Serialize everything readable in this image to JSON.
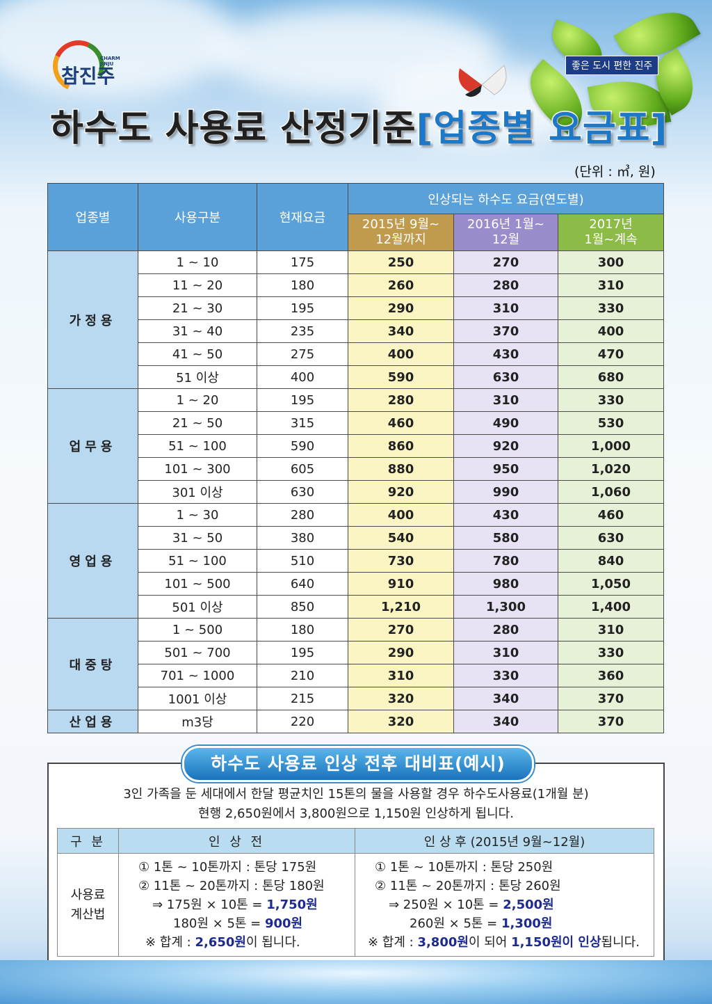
{
  "logo": {
    "main": "참진주",
    "sub_line1": "CHARM",
    "sub_line2": "JINJU"
  },
  "slogan": "좋은 도시  편한 진주",
  "title": {
    "main": "하수도 사용료 산정기준",
    "accent": "[업종별 요금표]"
  },
  "unit": "(단위 : ㎥, 원)",
  "rate_table": {
    "headers": {
      "category": "업종별",
      "usage": "사용구분",
      "current": "현재요금",
      "increase_group": "인상되는 하수도 요금(연도별)",
      "y2015_l1": "2015년 9월~",
      "y2015_l2": "12월까지",
      "y2016_l1": "2016년 1월~",
      "y2016_l2": "12월",
      "y2017_l1": "2017년",
      "y2017_l2": "1월~계속"
    },
    "groups": [
      {
        "name": "가정용",
        "rows": [
          {
            "usage": "1 ~ 10",
            "current": "175",
            "y2015": "250",
            "y2016": "270",
            "y2017": "300"
          },
          {
            "usage": "11 ~ 20",
            "current": "180",
            "y2015": "260",
            "y2016": "280",
            "y2017": "310"
          },
          {
            "usage": "21 ~ 30",
            "current": "195",
            "y2015": "290",
            "y2016": "310",
            "y2017": "330"
          },
          {
            "usage": "31 ~ 40",
            "current": "235",
            "y2015": "340",
            "y2016": "370",
            "y2017": "400"
          },
          {
            "usage": "41 ~ 50",
            "current": "275",
            "y2015": "400",
            "y2016": "430",
            "y2017": "470"
          },
          {
            "usage": "51 이상",
            "current": "400",
            "y2015": "590",
            "y2016": "630",
            "y2017": "680"
          }
        ]
      },
      {
        "name": "업무용",
        "rows": [
          {
            "usage": "1 ~ 20",
            "current": "195",
            "y2015": "280",
            "y2016": "310",
            "y2017": "330"
          },
          {
            "usage": "21 ~ 50",
            "current": "315",
            "y2015": "460",
            "y2016": "490",
            "y2017": "530"
          },
          {
            "usage": "51 ~ 100",
            "current": "590",
            "y2015": "860",
            "y2016": "920",
            "y2017": "1,000"
          },
          {
            "usage": "101 ~ 300",
            "current": "605",
            "y2015": "880",
            "y2016": "950",
            "y2017": "1,020"
          },
          {
            "usage": "301 이상",
            "current": "630",
            "y2015": "920",
            "y2016": "990",
            "y2017": "1,060"
          }
        ]
      },
      {
        "name": "영업용",
        "rows": [
          {
            "usage": "1 ~ 30",
            "current": "280",
            "y2015": "400",
            "y2016": "430",
            "y2017": "460"
          },
          {
            "usage": "31 ~ 50",
            "current": "380",
            "y2015": "540",
            "y2016": "580",
            "y2017": "630"
          },
          {
            "usage": "51 ~ 100",
            "current": "510",
            "y2015": "730",
            "y2016": "780",
            "y2017": "840"
          },
          {
            "usage": "101 ~ 500",
            "current": "640",
            "y2015": "910",
            "y2016": "980",
            "y2017": "1,050"
          },
          {
            "usage": "501 이상",
            "current": "850",
            "y2015": "1,210",
            "y2016": "1,300",
            "y2017": "1,400"
          }
        ]
      },
      {
        "name": "대중탕",
        "rows": [
          {
            "usage": "1 ~ 500",
            "current": "180",
            "y2015": "270",
            "y2016": "280",
            "y2017": "310"
          },
          {
            "usage": "501 ~ 700",
            "current": "195",
            "y2015": "290",
            "y2016": "310",
            "y2017": "330"
          },
          {
            "usage": "701 ~ 1000",
            "current": "210",
            "y2015": "310",
            "y2016": "330",
            "y2017": "360"
          },
          {
            "usage": "1001 이상",
            "current": "215",
            "y2015": "320",
            "y2016": "340",
            "y2017": "370"
          }
        ]
      },
      {
        "name": "산업용",
        "rows": [
          {
            "usage": "m3당",
            "current": "220",
            "y2015": "320",
            "y2016": "340",
            "y2017": "370"
          }
        ]
      }
    ]
  },
  "comparison": {
    "title": "하수도 사용료 인상 전후 대비표(예시)",
    "desc_line1": "3인 가족을 둔 세대에서 한달 평균치인 15톤의 물을 사용할 경우 하수도사용료(1개월 분)",
    "desc_line2": "현행 2,650원에서 3,800원으로 1,150원 인상하게 됩니다.",
    "col_label": "구  분",
    "col_before": "인 상 전",
    "col_after": "인 상 후 (2015년 9월~12월)",
    "row_label_l1": "사용료",
    "row_label_l2": "계산법",
    "before": {
      "line1": "① 1톤 ~ 10톤까지 : 톤당 175원",
      "line2": "② 11톤 ~ 20톤까지 : 톤당 180원",
      "line3_pre": "⇒ 175원 × 10톤 = ",
      "line3_val": "1,750원",
      "line4_pre": "180원 ×  5톤 =  ",
      "line4_val": "900원",
      "line5_pre": "※ 합계 : ",
      "line5_val": "2,650원",
      "line5_post": "이 됩니다."
    },
    "after": {
      "line1": "① 1톤 ~ 10톤까지 : 톤당 250원",
      "line2": "② 11톤 ~ 20톤까지 : 톤당 260원",
      "line3_pre": "⇒ 250원 × 10톤 = ",
      "line3_val": "2,500원",
      "line4_pre": "260원 ×  5톤 = ",
      "line4_val": "1,300원",
      "line5_pre": "※ 합계 : ",
      "line5_val": "3,800원",
      "line5_mid": "이 되어 ",
      "line5_val2": "1,150원이 인상",
      "line5_post": "됩니다."
    }
  }
}
